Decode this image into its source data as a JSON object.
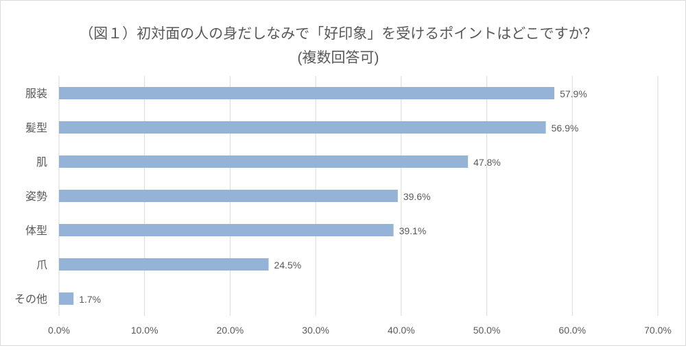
{
  "chart_data": {
    "type": "bar",
    "orientation": "horizontal",
    "title": "（図１）初対面の人の身だしなみで「好印象」を受けるポイントはどこですか？",
    "subtitle": "(複数回答可)",
    "categories": [
      "服装",
      "髪型",
      "肌",
      "姿勢",
      "体型",
      "爪",
      "その他"
    ],
    "values": [
      57.9,
      56.9,
      47.8,
      39.6,
      39.1,
      24.5,
      1.7
    ],
    "data_labels": [
      "57.9%",
      "56.9%",
      "47.8%",
      "39.6%",
      "39.1%",
      "24.5%",
      "1.7%"
    ],
    "xlim": [
      0,
      70
    ],
    "xticks": [
      0,
      10,
      20,
      30,
      40,
      50,
      60,
      70
    ],
    "xtick_labels": [
      "0.0%",
      "10.0%",
      "20.0%",
      "30.0%",
      "40.0%",
      "50.0%",
      "60.0%",
      "70.0%"
    ],
    "xlabel": "",
    "ylabel": "",
    "grid": true,
    "legend": "none",
    "bar_color": "#95b3d7",
    "grid_color": "#d9d9d9"
  }
}
